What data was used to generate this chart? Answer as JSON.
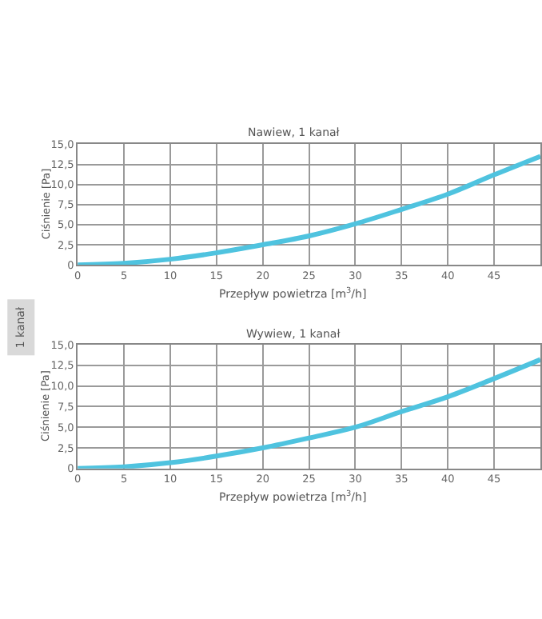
{
  "chart_data": [
    {
      "type": "line",
      "title": "Nawiew, 1 kanał",
      "xlabel": "Przepływ powietrza [m$^{3}$/h]",
      "ylabel": "Ciśnienie [Pa]",
      "annotations": [
        "1 kanał"
      ],
      "x": [
        0,
        5,
        10,
        15,
        20,
        25,
        30,
        35,
        40,
        45,
        50
      ],
      "series": [
        {
          "color": "#4fc3df",
          "values": [
            0,
            0.2,
            0.7,
            1.5,
            2.5,
            3.6,
            5.1,
            6.9,
            8.8,
            11.2,
            13.5
          ]
        }
      ],
      "xlim": [
        0,
        50
      ],
      "xticks": [
        0,
        5,
        10,
        15,
        20,
        25,
        30,
        35,
        40,
        45
      ],
      "ylim": [
        0,
        15
      ],
      "yticks": [
        0,
        {
          "value": 2.5,
          "label": "2,5"
        },
        {
          "value": 5,
          "label": "5,0"
        },
        {
          "value": 7.5,
          "label": "7,5"
        },
        {
          "value": 10,
          "label": "10,0"
        },
        {
          "value": 12.5,
          "label": "12,5"
        },
        {
          "value": 15,
          "label": "15,0"
        }
      ],
      "grid": true,
      "marker": "none",
      "line_style": "solid"
    },
    {
      "type": "line",
      "title": "Wywiew, 1 kanał",
      "xlabel": "Przepływ powietrza [m$^{3}$/h]",
      "ylabel": "Ciśnienie [Pa]",
      "x": [
        0,
        5,
        10,
        15,
        20,
        25,
        30,
        35,
        40,
        45,
        50
      ],
      "series": [
        {
          "color": "#4fc3df",
          "values": [
            0,
            0.2,
            0.7,
            1.5,
            2.5,
            3.7,
            5.0,
            6.9,
            8.7,
            10.9,
            13.2
          ]
        }
      ],
      "xlim": [
        0,
        50
      ],
      "xticks": [
        0,
        5,
        10,
        15,
        20,
        25,
        30,
        35,
        40,
        45
      ],
      "ylim": [
        0,
        15
      ],
      "yticks": [
        0,
        {
          "value": 2.5,
          "label": "2,5"
        },
        {
          "value": 5,
          "label": "5,0"
        },
        {
          "value": 7.5,
          "label": "7,5"
        },
        {
          "value": 10,
          "label": "10,0"
        },
        {
          "value": 12.5,
          "label": "12,5"
        },
        {
          "value": 15,
          "label": "15,0"
        }
      ],
      "grid": true,
      "marker": "none",
      "line_style": "solid"
    }
  ]
}
